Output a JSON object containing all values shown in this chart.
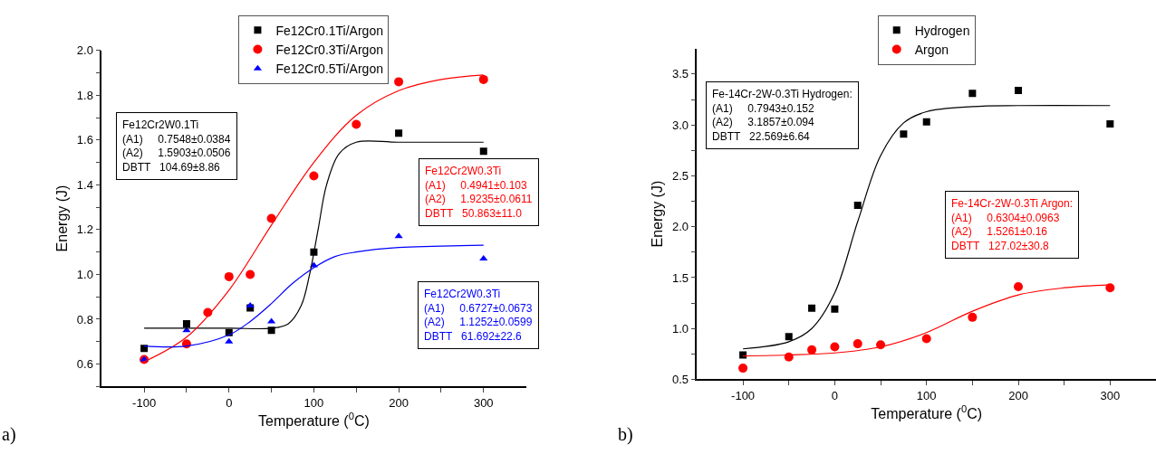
{
  "chart_data": [
    {
      "type": "scatter",
      "xlabel": "Temperature ($^{0}$C)",
      "ylabel": "Energy (J)",
      "xlim": [
        -150,
        350
      ],
      "ylim": [
        0.5,
        2.0
      ],
      "xticks": [
        -100,
        {
          "value": -50,
          "label": null
        },
        0,
        {
          "value": 50,
          "label": null
        },
        100,
        {
          "value": 150,
          "label": null
        },
        200,
        {
          "value": 250,
          "label": null
        },
        300
      ],
      "yticks": [
        {
          "value": 0.5,
          "label": null
        },
        0.6,
        {
          "value": 0.7,
          "label": null
        },
        0.8,
        {
          "value": 0.9,
          "label": null
        },
        {
          "value": 1,
          "label": "1.0"
        },
        {
          "value": 1.1,
          "label": null
        },
        1.2,
        {
          "value": 1.3,
          "label": null
        },
        1.4,
        {
          "value": 1.5,
          "label": null
        },
        1.6,
        {
          "value": 1.7,
          "label": null
        },
        1.8,
        {
          "value": 1.9,
          "label": null
        },
        {
          "value": 2,
          "label": "2.0"
        }
      ],
      "legend": "top",
      "series": [
        {
          "name": "Fe12Cr0.1Ti/Argon",
          "marker": "square",
          "color": "#000000",
          "x": [
            -100,
            -50,
            0,
            25,
            50,
            100,
            200,
            300
          ],
          "values": [
            0.67,
            0.78,
            0.74,
            0.85,
            0.75,
            1.1,
            1.63,
            1.55
          ]
        },
        {
          "name": "Fe12Cr0.3Ti/Argon",
          "marker": "circle",
          "color": "#ff0000",
          "x": [
            -100,
            -50,
            -25,
            0,
            25,
            50,
            100,
            150,
            200,
            300
          ],
          "values": [
            0.62,
            0.69,
            0.83,
            0.99,
            1.0,
            1.25,
            1.44,
            1.67,
            1.86,
            1.87
          ]
        },
        {
          "name": "Fe12Cr0.5Ti/Argon",
          "marker": "triangle",
          "color": "#0000ff",
          "x": [
            -100,
            -50,
            0,
            25,
            50,
            100,
            200,
            300
          ],
          "values": [
            0.62,
            0.75,
            0.7,
            0.86,
            0.79,
            1.04,
            1.17,
            1.07
          ]
        },
        {
          "type": "line",
          "color": "#000000",
          "x": [
            -100,
            0,
            50,
            70,
            85,
            95,
            105,
            115,
            130,
            150,
            200,
            300
          ],
          "values": [
            0.76,
            0.76,
            0.76,
            0.78,
            0.86,
            1.0,
            1.2,
            1.4,
            1.54,
            1.59,
            1.59,
            1.59
          ]
        },
        {
          "type": "line",
          "color": "#ff0000",
          "x": [
            -100,
            -50,
            0,
            50,
            100,
            150,
            200,
            250,
            300
          ],
          "values": [
            0.61,
            0.72,
            0.93,
            1.22,
            1.5,
            1.71,
            1.82,
            1.87,
            1.89
          ]
        },
        {
          "type": "line",
          "color": "#0000ff",
          "x": [
            -100,
            -50,
            0,
            25,
            50,
            75,
            100,
            125,
            150,
            200,
            300
          ],
          "values": [
            0.68,
            0.68,
            0.73,
            0.79,
            0.87,
            0.96,
            1.03,
            1.08,
            1.1,
            1.12,
            1.13
          ]
        }
      ],
      "annotations": [
        "Fe12Cr2W0.1Ti\n(A1)     0.7548±0.0384\n(A2)     1.5903±0.0506\nDBTT   104.69±8.86",
        "Fe12Cr2W0.3Ti\n(A1)     0.4941±0.103\n(A2)     1.9235±0.0611\nDBTT   50.863±11.0",
        "Fe12Cr2W0.3Ti\n(A1)     0.6727±0.0673\n(A2)     1.1252±0.0599\nDBTT   61.692±22.6",
        "a)"
      ]
    },
    {
      "type": "scatter",
      "xlabel": "Temperature ($^{0}$C)",
      "ylabel": "Energy (J)",
      "xlim": [
        -150,
        350
      ],
      "ylim": [
        0.5,
        3.75
      ],
      "xticks": [
        -100,
        {
          "value": -50,
          "label": null
        },
        0,
        {
          "value": 50,
          "label": null
        },
        100,
        {
          "value": 150,
          "label": null
        },
        200,
        {
          "value": 250,
          "label": null
        },
        300
      ],
      "yticks": [
        0.5,
        {
          "value": 0.75,
          "label": null
        },
        {
          "value": 1,
          "label": "1.0"
        },
        {
          "value": 1.25,
          "label": null
        },
        1.5,
        {
          "value": 1.75,
          "label": null
        },
        {
          "value": 2,
          "label": "2.0"
        },
        {
          "value": 2.25,
          "label": null
        },
        2.5,
        {
          "value": 2.75,
          "label": null
        },
        {
          "value": 3,
          "label": "3.0"
        },
        {
          "value": 3.25,
          "label": null
        },
        3.5
      ],
      "legend": "top",
      "series": [
        {
          "name": "Hydrogen",
          "marker": "square",
          "color": "#000000",
          "x": [
            -100,
            -50,
            -25,
            0,
            25,
            75,
            100,
            150,
            200,
            300
          ],
          "values": [
            0.74,
            0.92,
            1.2,
            1.19,
            2.21,
            2.91,
            3.03,
            3.31,
            3.34,
            3.01
          ]
        },
        {
          "name": "Argon",
          "marker": "circle",
          "color": "#ff0000",
          "x": [
            -100,
            -50,
            -25,
            0,
            25,
            50,
            100,
            150,
            200,
            300
          ],
          "values": [
            0.61,
            0.72,
            0.79,
            0.82,
            0.85,
            0.84,
            0.9,
            1.11,
            1.41,
            1.4
          ]
        },
        {
          "type": "line",
          "color": "#000000",
          "x": [
            -100,
            -50,
            -25,
            0,
            25,
            50,
            75,
            100,
            150,
            200,
            300
          ],
          "values": [
            0.8,
            0.87,
            1.0,
            1.35,
            2.05,
            2.7,
            3.02,
            3.13,
            3.18,
            3.19,
            3.19
          ]
        },
        {
          "type": "line",
          "color": "#ff0000",
          "x": [
            -100,
            -50,
            0,
            50,
            100,
            150,
            200,
            250,
            300
          ],
          "values": [
            0.73,
            0.74,
            0.76,
            0.82,
            0.96,
            1.17,
            1.33,
            1.4,
            1.43
          ]
        }
      ],
      "annotations": [
        "Fe-14Cr-2W-0.3Ti Hydrogen:\n(A1)     0.7943±0.152\n(A2)     3.1857±0.094\nDBTT   22.569±6.64",
        "Fe-14Cr-2W-0.3Ti Argon:\n(A1)     0.6304±0.0963\n(A2)     1.5261±0.16\nDBTT   127.02±30.8",
        "b)"
      ]
    }
  ]
}
